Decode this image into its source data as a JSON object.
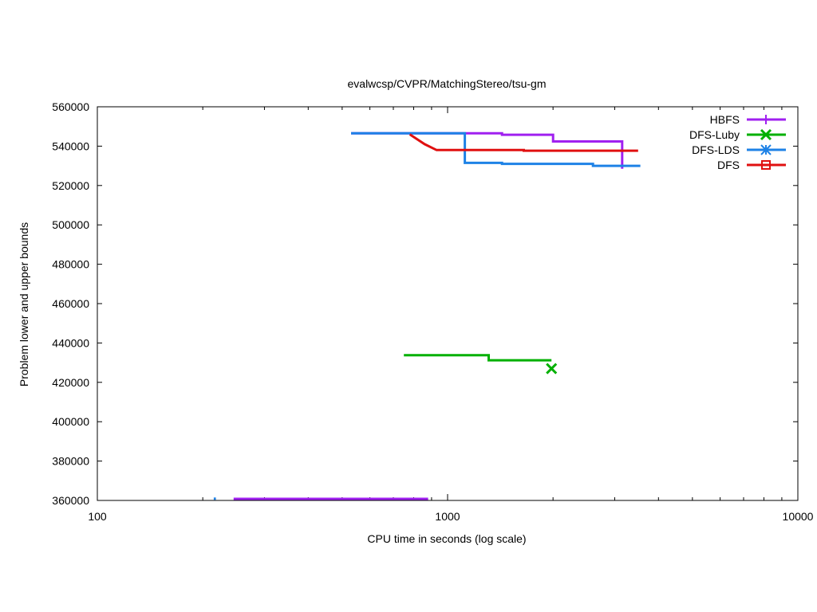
{
  "chart_data": {
    "type": "line",
    "title": "evalwcsp/CVPR/MatchingStereo/tsu-gm",
    "xlabel": "CPU time in seconds (log scale)",
    "ylabel": "Problem lower and upper bounds",
    "xscale": "log",
    "xlim": [
      100,
      10000
    ],
    "ylim": [
      360000,
      560000
    ],
    "x_ticks": [
      100,
      1000,
      10000
    ],
    "x_tick_labels": [
      "100",
      "1000",
      "10000"
    ],
    "y_ticks": [
      360000,
      380000,
      400000,
      420000,
      440000,
      460000,
      480000,
      500000,
      520000,
      540000,
      560000
    ],
    "y_tick_labels": [
      "360000",
      "380000",
      "400000",
      "420000",
      "440000",
      "460000",
      "480000",
      "500000",
      "520000",
      "540000",
      "560000"
    ],
    "grid": false,
    "legend_position": "top-right",
    "series": [
      {
        "name": "HBFS",
        "color": "#a020f0",
        "marker": "plus",
        "segments": [
          {
            "points": [
              [
                530,
                546500
              ],
              [
                1430,
                546500
              ],
              [
                1430,
                545800
              ],
              [
                2000,
                545800
              ],
              [
                2000,
                542400
              ],
              [
                3150,
                542400
              ],
              [
                3150,
                528500
              ]
            ],
            "step": false
          },
          {
            "points": [
              [
                245,
                360800
              ],
              [
                880,
                360800
              ]
            ],
            "step": false
          }
        ]
      },
      {
        "name": "DFS-Luby",
        "color": "#00b000",
        "marker": "x",
        "segments": [
          {
            "points": [
              [
                750,
                433800
              ],
              [
                1310,
                433800
              ],
              [
                1310,
                431200
              ],
              [
                1980,
                431200
              ]
            ],
            "step": false
          }
        ],
        "end_marker": [
          1980,
          427000
        ]
      },
      {
        "name": "DFS-LDS",
        "color": "#1e82e6",
        "marker": "star",
        "segments": [
          {
            "points": [
              [
                530,
                546500
              ],
              [
                1120,
                546500
              ],
              [
                1120,
                531500
              ],
              [
                1430,
                531500
              ],
              [
                1430,
                531000
              ],
              [
                2600,
                531000
              ],
              [
                2600,
                530000
              ],
              [
                3550,
                530000
              ]
            ],
            "step": false
          },
          {
            "points": [
              [
                215,
                360900
              ],
              [
                218,
                360900
              ]
            ],
            "step": false
          }
        ]
      },
      {
        "name": "DFS",
        "color": "#e01010",
        "marker": "square",
        "segments": [
          {
            "points": [
              [
                780,
                546000
              ],
              [
                860,
                541000
              ],
              [
                930,
                538000
              ],
              [
                1650,
                538000
              ],
              [
                1650,
                537700
              ],
              [
                3500,
                537700
              ]
            ],
            "step": false
          }
        ]
      }
    ]
  }
}
